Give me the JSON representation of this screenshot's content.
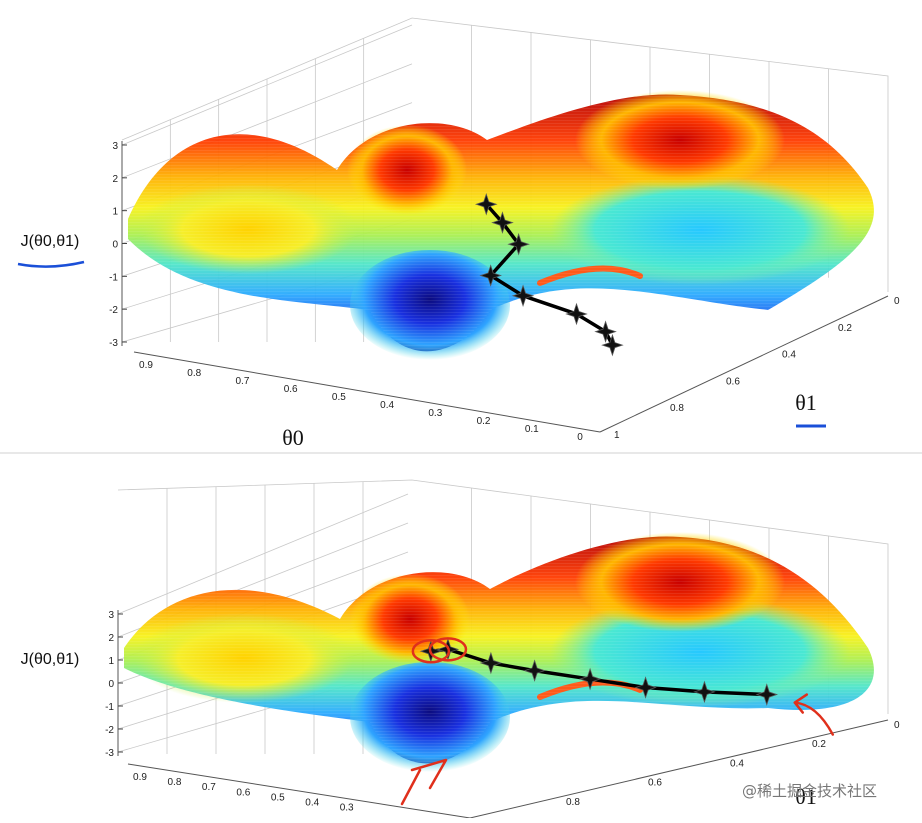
{
  "chart_data": [
    {
      "type": "surface3d",
      "title": "",
      "zlabel": "J(θ0,θ1)",
      "xlabel": "θ0",
      "ylabel": "θ1",
      "z_ticks": [
        "3",
        "2",
        "1",
        "0",
        "-1",
        "-2",
        "-3"
      ],
      "zlim": [
        -3,
        3
      ],
      "x_ticks": [
        "0.9",
        "0.8",
        "0.7",
        "0.6",
        "0.5",
        "0.4",
        "0.3",
        "0.2",
        "0.1",
        "0"
      ],
      "y_ticks": [
        "0",
        "0.2",
        "0.4",
        "0.6",
        "0.8",
        "1"
      ],
      "path": [
        {
          "theta0": 0.38,
          "theta1": 0.22,
          "J": 2.1
        },
        {
          "theta0": 0.37,
          "theta1": 0.26,
          "J": 1.4
        },
        {
          "theta0": 0.36,
          "theta1": 0.3,
          "J": 0.6
        },
        {
          "theta0": 0.42,
          "theta1": 0.3,
          "J": -0.5
        },
        {
          "theta0": 0.4,
          "theta1": 0.38,
          "J": -1.4
        },
        {
          "theta0": 0.31,
          "theta1": 0.42,
          "J": -1.9
        },
        {
          "theta0": 0.26,
          "theta1": 0.44,
          "J": -2.4
        },
        {
          "theta0": 0.27,
          "theta1": 0.48,
          "J": -3.0
        }
      ],
      "annotations": []
    },
    {
      "type": "surface3d",
      "title": "",
      "zlabel": "J(θ0,θ1)",
      "xlabel": "",
      "ylabel": "θ1",
      "z_ticks": [
        "3",
        "2",
        "1",
        "0",
        "-1",
        "-2",
        "-3"
      ],
      "zlim": [
        -3,
        3
      ],
      "x_ticks": [
        "0.9",
        "0.8",
        "0.7",
        "0.6",
        "0.5",
        "0.4",
        "0.3"
      ],
      "y_ticks": [
        "0",
        "0.2",
        "0.4",
        "0.6",
        "0.8"
      ],
      "path": [
        {
          "theta0": 0.42,
          "theta1": 0.25,
          "J": 2.2
        },
        {
          "theta0": 0.37,
          "theta1": 0.25,
          "J": 2.4
        },
        {
          "theta0": 0.33,
          "theta1": 0.32,
          "J": 1.6
        },
        {
          "theta0": 0.3,
          "theta1": 0.4,
          "J": 1.0
        },
        {
          "theta0": 0.26,
          "theta1": 0.5,
          "J": 0.3
        },
        {
          "theta0": 0.22,
          "theta1": 0.6,
          "J": -0.4
        },
        {
          "theta0": 0.17,
          "theta1": 0.7,
          "J": -0.9
        },
        {
          "theta0": 0.11,
          "theta1": 0.8,
          "J": -1.3
        }
      ],
      "annotations": [
        "red circles around two starting points",
        "red arrows marking two different minima"
      ]
    }
  ],
  "watermark": "@稀土掘金技术社区"
}
